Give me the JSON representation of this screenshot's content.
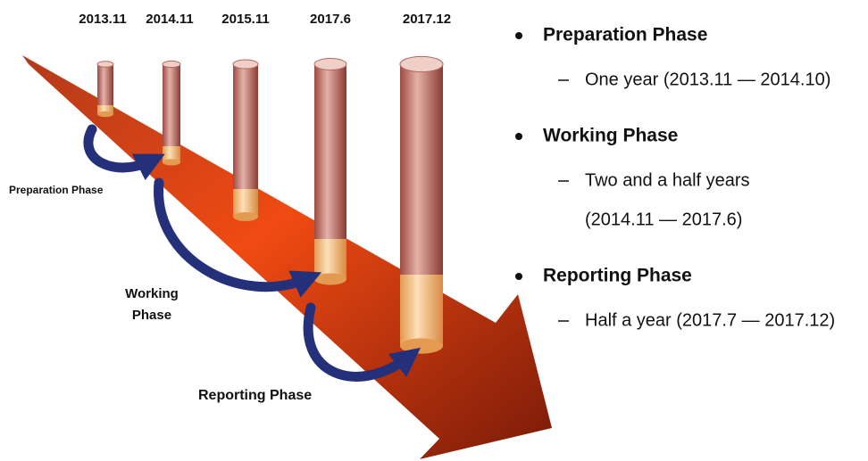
{
  "milestones": [
    "2013.11",
    "2014.11",
    "2015.11",
    "2017.6",
    "2017.12"
  ],
  "phase_labels": [
    [
      "Preparation Phase"
    ],
    [
      "Working",
      "Phase"
    ],
    [
      "Reporting Phase"
    ]
  ],
  "bullets": [
    {
      "title": "Preparation Phase",
      "details": [
        "One year (2013.11 — 2014.10)"
      ]
    },
    {
      "title": "Working Phase",
      "details": [
        "Two and a half years",
        "(2014.11 — 2017.6)"
      ]
    },
    {
      "title": "Reporting Phase",
      "details": [
        "Half a year (2017.7 — 2017.12)"
      ]
    }
  ]
}
